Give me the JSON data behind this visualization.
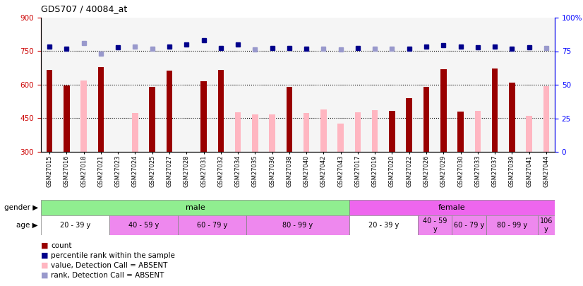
{
  "title": "GDS707 / 40084_at",
  "samples": [
    "GSM27015",
    "GSM27016",
    "GSM27018",
    "GSM27021",
    "GSM27023",
    "GSM27024",
    "GSM27025",
    "GSM27027",
    "GSM27028",
    "GSM27031",
    "GSM27032",
    "GSM27034",
    "GSM27035",
    "GSM27036",
    "GSM27038",
    "GSM27040",
    "GSM27042",
    "GSM27043",
    "GSM27017",
    "GSM27019",
    "GSM27020",
    "GSM27022",
    "GSM27026",
    "GSM27029",
    "GSM27030",
    "GSM27033",
    "GSM27037",
    "GSM27039",
    "GSM27041",
    "GSM27044"
  ],
  "count_values": [
    665,
    597,
    null,
    680,
    null,
    null,
    592,
    662,
    null,
    615,
    665,
    null,
    null,
    null,
    592,
    null,
    null,
    null,
    null,
    null,
    483,
    540,
    590,
    670,
    481,
    null,
    672,
    608,
    null,
    null
  ],
  "count_absent": [
    null,
    null,
    620,
    null,
    null,
    475,
    null,
    null,
    null,
    null,
    null,
    478,
    468,
    468,
    null,
    475,
    488,
    425,
    478,
    487,
    null,
    null,
    null,
    null,
    null,
    483,
    null,
    null,
    460,
    595
  ],
  "rank_present": [
    770,
    762,
    null,
    null,
    767,
    null,
    null,
    770,
    780,
    800,
    765,
    780,
    null,
    765,
    765,
    760,
    null,
    null,
    765,
    null,
    null,
    762,
    770,
    778,
    770,
    768,
    770,
    762,
    766,
    null
  ],
  "rank_absent": [
    null,
    null,
    785,
    740,
    null,
    770,
    762,
    null,
    null,
    null,
    null,
    null,
    758,
    null,
    null,
    null,
    762,
    757,
    null,
    760,
    762,
    null,
    null,
    null,
    null,
    null,
    null,
    null,
    null,
    765
  ],
  "ylim_left": [
    300,
    900
  ],
  "ylim_right": [
    0,
    100
  ],
  "yticks_left": [
    300,
    450,
    600,
    750,
    900
  ],
  "yticks_right": [
    0,
    25,
    50,
    75,
    100
  ],
  "hlines": [
    450,
    600,
    750
  ],
  "color_count": "#990000",
  "color_absent_bar": "#ffb6c1",
  "color_rank_present": "#00008B",
  "color_rank_absent": "#9999cc",
  "gender_regions": [
    {
      "label": "male",
      "start": 0,
      "end": 18,
      "color": "#90EE90"
    },
    {
      "label": "female",
      "start": 18,
      "end": 30,
      "color": "#ee66ee"
    }
  ],
  "age_regions": [
    {
      "label": "20 - 39 y",
      "start": 0,
      "end": 4,
      "color": "#ffffff"
    },
    {
      "label": "40 - 59 y",
      "start": 4,
      "end": 8,
      "color": "#ee88ee"
    },
    {
      "label": "60 - 79 y",
      "start": 8,
      "end": 12,
      "color": "#ee88ee"
    },
    {
      "label": "80 - 99 y",
      "start": 12,
      "end": 18,
      "color": "#ee88ee"
    },
    {
      "label": "20 - 39 y",
      "start": 18,
      "end": 22,
      "color": "#ffffff"
    },
    {
      "label": "40 - 59\ny",
      "start": 22,
      "end": 24,
      "color": "#ee88ee"
    },
    {
      "label": "60 - 79 y",
      "start": 24,
      "end": 26,
      "color": "#ee88ee"
    },
    {
      "label": "80 - 99 y",
      "start": 26,
      "end": 29,
      "color": "#ee88ee"
    },
    {
      "label": "106\ny",
      "start": 29,
      "end": 30,
      "color": "#ee88ee"
    }
  ],
  "legend_items": [
    {
      "label": "count",
      "color": "#990000"
    },
    {
      "label": "percentile rank within the sample",
      "color": "#00008B"
    },
    {
      "label": "value, Detection Call = ABSENT",
      "color": "#ffb6c1"
    },
    {
      "label": "rank, Detection Call = ABSENT",
      "color": "#9999cc"
    }
  ]
}
